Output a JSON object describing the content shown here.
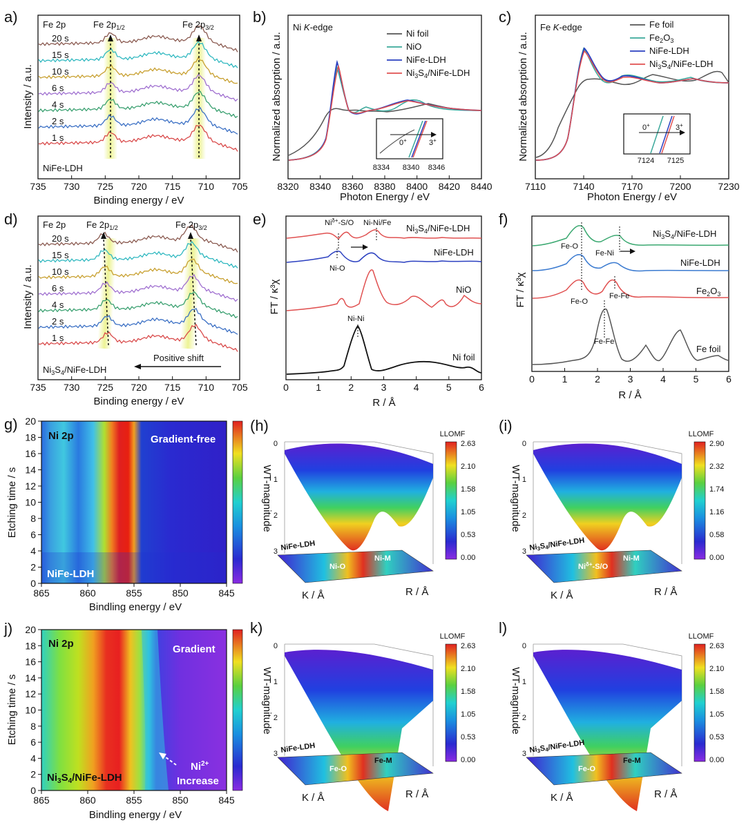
{
  "panels": [
    {
      "id": "a",
      "letter": "a)",
      "type": "xps-stack",
      "xlabel": "Binding energy / eV",
      "ylabel": "Intensity / a.u.",
      "element": "Fe 2p",
      "sample": "NiFe-LDH",
      "peak1": "Fe 2p1/2",
      "peak2": "Fe 2p3/2",
      "xticks": [
        "735",
        "730",
        "725",
        "720",
        "715",
        "710",
        "705"
      ],
      "series": [
        "1 s",
        "2 s",
        "4 s",
        "6 s",
        "10 s",
        "15 s",
        "20 s"
      ],
      "colors": [
        "#d94a4a",
        "#3a6fc4",
        "#3aa070",
        "#a070d0",
        "#c8a030",
        "#30b8c0",
        "#8a5a50"
      ]
    },
    {
      "id": "b",
      "letter": "b)",
      "type": "xanes",
      "xlabel": "Photon Energy / eV",
      "ylabel": "Normalized absorption / a.u.",
      "edge": "Ni K-edge",
      "xticks": [
        "8320",
        "8340",
        "8360",
        "8380",
        "8400",
        "8420",
        "8440"
      ],
      "legend": [
        "Ni foil",
        "NiO",
        "NiFe-LDH",
        "Ni3S4/NiFe-LDH"
      ],
      "legend_colors": [
        "#555555",
        "#3aa89a",
        "#2a3fc0",
        "#e05050"
      ],
      "inset_ticks": [
        "8334",
        "8340",
        "8346"
      ],
      "inset_labels": [
        "0+",
        "3+"
      ]
    },
    {
      "id": "c",
      "letter": "c)",
      "type": "xanes",
      "xlabel": "Photon Energy / eV",
      "ylabel": "Normalized absorption / a.u.",
      "edge": "Fe K-edge",
      "xticks": [
        "7110",
        "7140",
        "7170",
        "7200",
        "7230"
      ],
      "legend": [
        "Fe foil",
        "Fe2O3",
        "NiFe-LDH",
        "Ni3S4/NiFe-LDH"
      ],
      "legend_colors": [
        "#555555",
        "#3aa89a",
        "#2a3fc0",
        "#e05050"
      ],
      "inset_ticks": [
        "7124",
        "7125"
      ],
      "inset_labels": [
        "0+",
        "3+"
      ]
    },
    {
      "id": "d",
      "letter": "d)",
      "type": "xps-stack",
      "xlabel": "Binding energy / eV",
      "ylabel": "Intensity / a.u.",
      "element": "Fe 2p",
      "sample": "Ni3S4/NiFe-LDH",
      "peak1": "Fe 2p1/2",
      "peak2": "Fe 2p3/2",
      "shift": "Positive shift",
      "xticks": [
        "735",
        "730",
        "725",
        "720",
        "715",
        "710",
        "705"
      ],
      "series": [
        "1 s",
        "2 s",
        "4 s",
        "6 s",
        "10 s",
        "15 s",
        "20 s"
      ]
    },
    {
      "id": "e",
      "letter": "e)",
      "type": "ft-exafs",
      "xlabel": "R / Å",
      "ylabel": "FT / κ³χ",
      "xticks": [
        "0",
        "1",
        "2",
        "3",
        "4",
        "5",
        "6"
      ],
      "series": [
        "Ni3S4/NiFe-LDH",
        "NiFe-LDH",
        "NiO",
        "Ni foil"
      ],
      "annotations": [
        "Niδ+-S/O",
        "Ni-Ni/Fe",
        "Ni-O",
        "Ni-Ni"
      ]
    },
    {
      "id": "f",
      "letter": "f)",
      "type": "ft-exafs",
      "xlabel": "R / Å",
      "ylabel": "FT / κ³χ",
      "xticks": [
        "0",
        "1",
        "2",
        "3",
        "4",
        "5",
        "6"
      ],
      "series": [
        "Ni3S4/NiFe-LDH",
        "NiFe-LDH",
        "Fe2O3",
        "Fe foil"
      ],
      "annotations": [
        "Fe-O",
        "Fe-Ni",
        "Fe-O",
        "Fe-Fe",
        "Fe-Fe"
      ]
    },
    {
      "id": "g",
      "letter": "g)",
      "type": "heatmap",
      "xlabel": "Bindling energy / eV",
      "ylabel": "Etching time / s",
      "element": "Ni 2p",
      "sample": "NiFe-LDH",
      "note": "Gradient-free",
      "xticks": [
        "865",
        "860",
        "855",
        "850",
        "845"
      ],
      "yticks": [
        "0",
        "2",
        "4",
        "6",
        "8",
        "10",
        "12",
        "14",
        "16",
        "18",
        "20"
      ]
    },
    {
      "id": "h",
      "letter": "(h)",
      "type": "wt-3d",
      "zlabel": "WT-magnitude",
      "cbar_title": "LLOMF",
      "cbar_ticks": [
        "2.63",
        "2.10",
        "1.58",
        "1.05",
        "0.53",
        "0.00"
      ],
      "zticks": [
        "0",
        "1",
        "2",
        "3"
      ],
      "sample": "NiFe-LDH",
      "labels": [
        "Ni-O",
        "Ni-M"
      ],
      "klabel": "K / Å",
      "rlabel": "R / Å"
    },
    {
      "id": "i",
      "letter": "(i)",
      "type": "wt-3d",
      "zlabel": "WT-magnitude",
      "cbar_title": "LLOMF",
      "cbar_ticks": [
        "2.90",
        "2.32",
        "1.74",
        "1.16",
        "0.58",
        "0.00"
      ],
      "zticks": [
        "0",
        "1",
        "2",
        "3"
      ],
      "sample": "Ni3S4/NiFe-LDH",
      "labels": [
        "Niδ+-S/O",
        "Ni-M"
      ],
      "klabel": "K / Å",
      "rlabel": "R / Å"
    },
    {
      "id": "j",
      "letter": "j)",
      "type": "heatmap",
      "xlabel": "Bindling energy / eV",
      "ylabel": "Etching time / s",
      "element": "Ni 2p",
      "sample": "Ni3S4/NiFe-LDH",
      "note": "Gradient",
      "note2": "Ni2+",
      "note3": "Increase",
      "xticks": [
        "865",
        "860",
        "855",
        "850",
        "845"
      ],
      "yticks": [
        "0",
        "2",
        "4",
        "6",
        "8",
        "10",
        "12",
        "14",
        "16",
        "18",
        "20"
      ]
    },
    {
      "id": "k",
      "letter": "k)",
      "type": "wt-3d",
      "zlabel": "WT-magnitude",
      "cbar_title": "LLOMF",
      "cbar_ticks": [
        "2.63",
        "2.10",
        "1.58",
        "1.05",
        "0.53",
        "0.00"
      ],
      "zticks": [
        "0",
        "1",
        "2",
        "3"
      ],
      "sample": "NiFe-LDH",
      "labels": [
        "Fe-O",
        "Fe-M"
      ],
      "klabel": "K / Å",
      "rlabel": "R / Å"
    },
    {
      "id": "l",
      "letter": "l)",
      "type": "wt-3d",
      "zlabel": "WT-magnitude",
      "cbar_title": "LLOMF",
      "cbar_ticks": [
        "2.63",
        "2.10",
        "1.58",
        "1.05",
        "0.53",
        "0.00"
      ],
      "zticks": [
        "0",
        "1",
        "2",
        "3"
      ],
      "sample": "Ni3S4/NiFe-LDH",
      "labels": [
        "Fe-O",
        "Fe-M"
      ],
      "klabel": "K / Å",
      "rlabel": "R / Å"
    }
  ],
  "chart_data": [
    {
      "panel": "a",
      "type": "line",
      "x": [
        735,
        705
      ],
      "xlabel": "Binding energy / eV",
      "ylabel": "Intensity / a.u.",
      "peaks_eV": {
        "Fe 2p1/2": 724.5,
        "Fe 2p3/2": 711.2
      }
    },
    {
      "panel": "d",
      "type": "line",
      "x": [
        735,
        705
      ],
      "xlabel": "Binding energy / eV",
      "ylabel": "Intensity / a.u.",
      "peaks_eV": {
        "Fe 2p1/2": 725.2,
        "Fe 2p3/2": 712.2
      }
    },
    {
      "panel": "e",
      "type": "line",
      "xlim": [
        0,
        6
      ],
      "xlabel": "R / Å",
      "ylabel": "FT / κ³χ",
      "peaks_A": {
        "Niδ+-S/O": 1.65,
        "Ni-Ni/Fe": 2.75,
        "Ni-O": 1.55,
        "Ni-Ni": 2.2
      }
    },
    {
      "panel": "f",
      "type": "line",
      "xlim": [
        0,
        6
      ],
      "xlabel": "R / Å",
      "ylabel": "FT / κ³χ",
      "peaks_A": {
        "Fe-O": 1.45,
        "Fe-Ni": 2.65,
        "Fe-Fe (Fe2O3)": 2.55,
        "Fe-Fe (Fe foil)": 2.2
      }
    },
    {
      "panel": "g",
      "type": "heatmap",
      "xlim": [
        865,
        845
      ],
      "ylim": [
        0,
        20
      ]
    },
    {
      "panel": "j",
      "type": "heatmap",
      "xlim": [
        865,
        845
      ],
      "ylim": [
        0,
        20
      ]
    }
  ]
}
